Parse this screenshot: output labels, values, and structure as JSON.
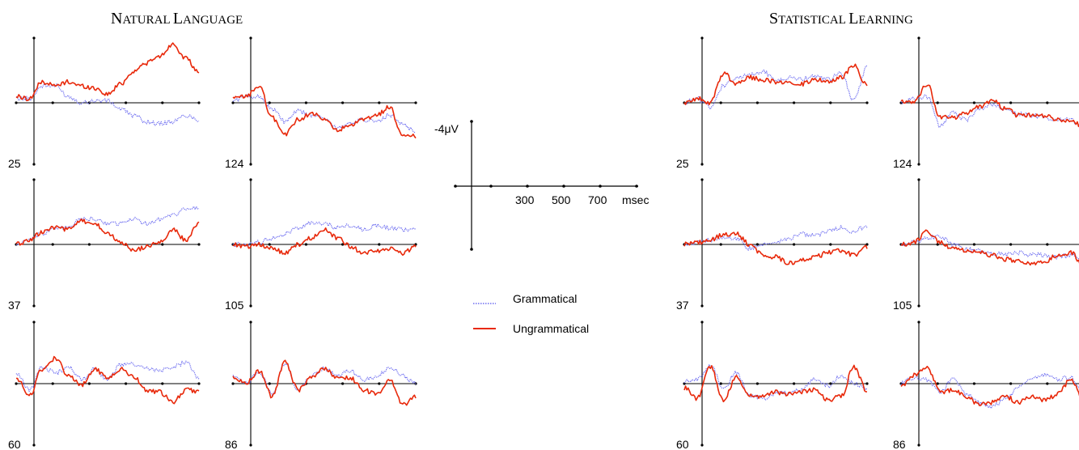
{
  "panels": [
    {
      "title_main": "N",
      "title_small": "ATURAL ",
      "title_main2": "L",
      "title_small2": "ANGUAGE"
    },
    {
      "title_main": "S",
      "title_small": "TATISTICAL ",
      "title_main2": "L",
      "title_small2": "EARNING"
    }
  ],
  "scale": {
    "amplitude_label": "-4μV",
    "time_unit": "msec",
    "time_ticks": [
      "300",
      "500",
      "700"
    ]
  },
  "legend": [
    {
      "label": "Grammatical",
      "color": "#6b6bf0",
      "style": "dotted"
    },
    {
      "label": "Ungrammatical",
      "color": "#e8290b",
      "style": "solid"
    }
  ],
  "chart_data": [
    {
      "type": "line",
      "title": "Natural Language",
      "channels": [
        {
          "channel": "25",
          "series": [
            {
              "name": "Grammatical",
              "values": [
                0.2,
                0.2,
                0.8,
                0.8,
                0.3,
                0.0,
                0.1,
                0.1,
                -0.3,
                -0.6,
                -0.9,
                -1.0,
                -0.9,
                -0.6,
                -0.8
              ]
            },
            {
              "name": "Ungrammatical",
              "values": [
                0.3,
                0.2,
                1.0,
                0.8,
                1.0,
                0.8,
                0.7,
                0.4,
                0.9,
                1.5,
                1.9,
                2.2,
                2.8,
                2.1,
                1.4
              ]
            }
          ]
        },
        {
          "channel": "124",
          "series": [
            {
              "name": "Grammatical",
              "values": [
                0.1,
                0.3,
                0.3,
                -0.3,
                -0.9,
                -0.4,
                -0.6,
                -0.7,
                -1.2,
                -1.0,
                -0.8,
                -0.9,
                -0.6,
                -1.0,
                -1.4
              ]
            },
            {
              "name": "Ungrammatical",
              "values": [
                0.2,
                0.3,
                0.8,
                -0.7,
                -1.5,
                -0.8,
                -0.5,
                -0.8,
                -1.3,
                -1.1,
                -0.8,
                -0.6,
                -0.2,
                -1.6,
                -1.6
              ]
            }
          ]
        },
        {
          "channel": "37",
          "series": [
            {
              "name": "Grammatical",
              "values": [
                0.0,
                0.2,
                0.5,
                0.8,
                0.8,
                1.2,
                1.2,
                1.0,
                1.0,
                1.2,
                1.0,
                1.2,
                1.4,
                1.7,
                1.7
              ]
            },
            {
              "name": "Ungrammatical",
              "values": [
                0.0,
                0.2,
                0.6,
                0.8,
                0.7,
                1.1,
                1.0,
                0.5,
                0.1,
                -0.3,
                -0.1,
                0.1,
                0.7,
                0.2,
                1.0
              ]
            }
          ]
        },
        {
          "channel": "105",
          "series": [
            {
              "name": "Grammatical",
              "values": [
                0.0,
                0.0,
                0.1,
                0.3,
                0.5,
                0.8,
                1.0,
                1.0,
                0.8,
                0.9,
                0.7,
                0.9,
                0.8,
                0.7,
                0.7
              ]
            },
            {
              "name": "Ungrammatical",
              "values": [
                0.0,
                -0.1,
                0.0,
                -0.2,
                -0.4,
                0.0,
                0.3,
                0.7,
                0.3,
                -0.1,
                -0.4,
                -0.3,
                -0.2,
                -0.4,
                -0.1
              ]
            }
          ]
        },
        {
          "channel": "60",
          "series": [
            {
              "name": "Grammatical",
              "values": [
                0.5,
                -0.3,
                0.8,
                0.5,
                0.8,
                0.2,
                0.7,
                0.2,
                0.9,
                0.9,
                0.7,
                0.6,
                0.8,
                1.0,
                0.3
              ]
            },
            {
              "name": "Ungrammatical",
              "values": [
                0.3,
                -0.6,
                0.7,
                1.2,
                0.4,
                -0.1,
                0.7,
                0.3,
                0.7,
                0.3,
                -0.3,
                -0.4,
                -0.9,
                -0.3,
                -0.4
              ]
            }
          ]
        },
        {
          "channel": "86",
          "series": [
            {
              "name": "Grammatical",
              "values": [
                0.3,
                0.0,
                0.6,
                -0.5,
                1.0,
                -0.3,
                0.4,
                0.7,
                0.4,
                0.6,
                0.2,
                0.3,
                0.8,
                0.4,
                0.0
              ]
            },
            {
              "name": "Ungrammatical",
              "values": [
                0.3,
                0.0,
                0.6,
                -0.6,
                1.0,
                -0.3,
                0.3,
                0.7,
                0.3,
                0.3,
                -0.3,
                -0.5,
                0.2,
                -1.0,
                -0.6
              ]
            }
          ]
        }
      ]
    },
    {
      "type": "line",
      "title": "Statistical Learning",
      "channels": [
        {
          "channel": "25",
          "series": [
            {
              "name": "Grammatical",
              "values": [
                0.0,
                0.2,
                -0.2,
                0.8,
                1.2,
                1.3,
                1.5,
                1.1,
                1.2,
                1.1,
                1.3,
                1.1,
                1.4,
                0.1,
                1.7
              ]
            },
            {
              "name": "Ungrammatical",
              "values": [
                0.0,
                0.2,
                0.0,
                1.4,
                0.9,
                1.2,
                1.1,
                1.0,
                1.0,
                0.9,
                1.1,
                1.0,
                1.2,
                1.8,
                0.8
              ]
            }
          ]
        },
        {
          "channel": "124",
          "series": [
            {
              "name": "Grammatical",
              "values": [
                0.0,
                0.2,
                0.3,
                -1.1,
                -0.5,
                -0.8,
                -0.3,
                -0.1,
                -0.3,
                -0.5,
                -0.6,
                -0.7,
                -0.8,
                -0.8,
                -1.2
              ]
            },
            {
              "name": "Ungrammatical",
              "values": [
                0.1,
                0.0,
                0.9,
                -0.7,
                -0.7,
                -0.5,
                -0.2,
                0.1,
                -0.3,
                -0.6,
                -0.6,
                -0.6,
                -0.8,
                -0.9,
                -1.1
              ]
            }
          ]
        },
        {
          "channel": "37",
          "series": [
            {
              "name": "Grammatical",
              "values": [
                0.0,
                0.1,
                0.2,
                0.3,
                0.3,
                -0.2,
                0.0,
                0.1,
                0.3,
                0.5,
                0.4,
                0.6,
                0.8,
                0.6,
                0.9
              ]
            },
            {
              "name": "Ungrammatical",
              "values": [
                0.0,
                0.1,
                0.2,
                0.5,
                0.5,
                0.0,
                -0.5,
                -0.6,
                -0.9,
                -0.7,
                -0.6,
                -0.4,
                -0.3,
                -0.5,
                -0.1
              ]
            }
          ]
        },
        {
          "channel": "105",
          "series": [
            {
              "name": "Grammatical",
              "values": [
                0.0,
                0.1,
                0.3,
                0.4,
                0.0,
                -0.2,
                -0.3,
                -0.4,
                -0.5,
                -0.4,
                -0.5,
                -0.5,
                -0.6,
                -0.5,
                -0.8
              ]
            },
            {
              "name": "Ungrammatical",
              "values": [
                0.0,
                0.1,
                0.6,
                0.1,
                -0.2,
                -0.3,
                -0.4,
                -0.5,
                -0.7,
                -0.8,
                -0.9,
                -0.8,
                -0.5,
                -0.4,
                -1.0
              ]
            }
          ]
        },
        {
          "channel": "60",
          "series": [
            {
              "name": "Grammatical",
              "values": [
                0.1,
                0.2,
                0.9,
                -0.2,
                0.5,
                -0.6,
                -0.7,
                -0.5,
                -0.4,
                -0.3,
                0.2,
                -0.1,
                0.4,
                0.0,
                -0.3
              ]
            },
            {
              "name": "Ungrammatical",
              "values": [
                -0.2,
                -0.7,
                0.8,
                -0.8,
                0.3,
                -0.6,
                -0.6,
                -0.4,
                -0.5,
                -0.4,
                -0.3,
                -0.8,
                -0.6,
                0.8,
                -0.4
              ]
            }
          ]
        },
        {
          "channel": "86",
          "series": [
            {
              "name": "Grammatical",
              "values": [
                0.0,
                0.3,
                0.2,
                -0.4,
                0.2,
                -0.5,
                -0.9,
                -1.1,
                -0.7,
                -0.2,
                0.3,
                0.4,
                0.2,
                0.3,
                -0.5
              ]
            },
            {
              "name": "Ungrammatical",
              "values": [
                -0.1,
                0.4,
                0.8,
                -0.4,
                -0.3,
                -0.6,
                -1.0,
                -0.9,
                -0.6,
                -0.9,
                -0.6,
                -0.8,
                -0.5,
                0.2,
                -0.8
              ]
            }
          ]
        }
      ]
    }
  ]
}
